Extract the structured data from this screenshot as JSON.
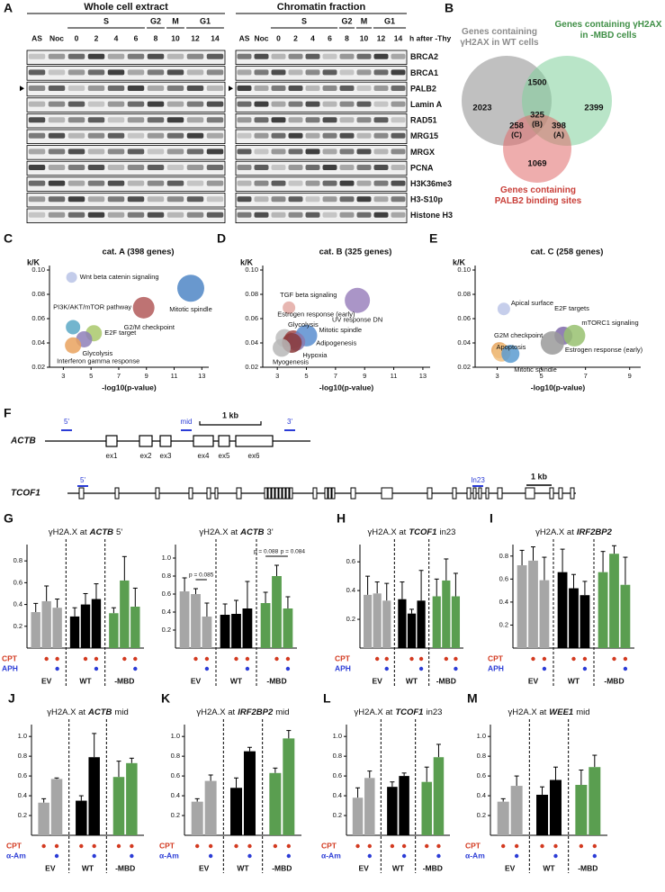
{
  "blot": {
    "panel": "A",
    "headers": [
      "Whole cell extract",
      "Chromatin fraction"
    ],
    "phases": [
      "S",
      "G2",
      "M",
      "G1"
    ],
    "lanes": [
      "AS",
      "Noc",
      "0",
      "2",
      "4",
      "6",
      "8",
      "10",
      "12",
      "14"
    ],
    "time_label": "h after -Thy",
    "proteins": [
      "BRCA2",
      "BRCA1",
      "PALB2",
      "Lamin A",
      "RAD51",
      "MRG15",
      "MRGX",
      "PCNA",
      "H3K36me3",
      "H3-S10p",
      "Histone H3"
    ]
  },
  "venn": {
    "panel": "B",
    "sets": [
      {
        "label": "Genes containing γH2AX in WT cells",
        "color": "#8c8c8c"
      },
      {
        "label": "Genes containing γH2AX in -MBD cells",
        "color": "#3f8f46"
      },
      {
        "label": "Genes containing PALB2 binding sites",
        "color": "#c9403a"
      }
    ],
    "regions": [
      {
        "count": 2023
      },
      {
        "count": 1500
      },
      {
        "count": 2399
      },
      {
        "count": 325,
        "tag": "(B)"
      },
      {
        "count": 258,
        "tag": "(C)"
      },
      {
        "count": 398,
        "tag": "(A)"
      },
      {
        "count": 1069
      }
    ]
  },
  "gene_map": {
    "panel": "F",
    "genes": [
      {
        "name": "ACTB",
        "exons": [
          "ex1",
          "ex2",
          "ex3",
          "ex4",
          "ex5",
          "ex6"
        ],
        "sites": [
          "5'",
          "mid",
          "3'"
        ],
        "scale": "1 kb"
      },
      {
        "name": "TCOF1",
        "sites": [
          "5'",
          "In23"
        ],
        "scale": "1 kb"
      }
    ]
  },
  "chart_data": [
    {
      "type": "bubble",
      "panel": "C",
      "title": "cat. A (398 genes)",
      "y_label": "k/K",
      "x_label": "-log10(p-value)",
      "xlim": [
        2,
        13.5
      ],
      "xticks": [
        3,
        5,
        7,
        9,
        11,
        13
      ],
      "ylim": [
        0.02,
        0.1
      ],
      "yticks": [
        0.02,
        0.04,
        0.06,
        0.08,
        {
          "value": 0.1,
          "label": "0.10"
        }
      ],
      "points": [
        {
          "name": "Wnt beta catenin signaling",
          "x": 3.6,
          "y": 0.094,
          "size": 6,
          "color": "#b9c3e6"
        },
        {
          "name": "PI3K/AKT/mTOR pathway",
          "x": 3.7,
          "y": 0.053,
          "size": 8,
          "color": "#5aa8c5"
        },
        {
          "name": "E2F target",
          "x": 5.2,
          "y": 0.048,
          "size": 9,
          "color": "#a9c86b"
        },
        {
          "name": "Glycolysis",
          "x": 4.5,
          "y": 0.043,
          "size": 9,
          "color": "#8e7fb8"
        },
        {
          "name": "Interferon gamma response",
          "x": 3.7,
          "y": 0.038,
          "size": 9,
          "color": "#e9a25e"
        },
        {
          "name": "G2/M checkpoint",
          "x": 8.8,
          "y": 0.069,
          "size": 12,
          "color": "#b35a5a"
        },
        {
          "name": "Mitotic spindle",
          "x": 12.2,
          "y": 0.085,
          "size": 15,
          "color": "#4f86c6"
        }
      ]
    },
    {
      "type": "bubble",
      "panel": "D",
      "title": "cat. B (325 genes)",
      "y_label": "k/K",
      "x_label": "-log10(p-value)",
      "xlim": [
        2,
        13.5
      ],
      "xticks": [
        3,
        5,
        7,
        9,
        11,
        13
      ],
      "ylim": [
        0.02,
        0.1
      ],
      "yticks": [
        0.02,
        0.04,
        0.06,
        0.08,
        {
          "value": 0.1,
          "label": "0.10"
        }
      ],
      "points": [
        {
          "name": "TGF beta signaling",
          "x": 3.8,
          "y": 0.069,
          "size": 7,
          "color": "#e3a9a3"
        },
        {
          "name": "UV response DN",
          "x": 8.5,
          "y": 0.075,
          "size": 14,
          "color": "#9b83bd"
        },
        {
          "name": "Estrogen response (early)",
          "x": 3.5,
          "y": 0.044,
          "size": 10,
          "color": "#bdbdbd"
        },
        {
          "name": "Glycolysis",
          "x": 4.1,
          "y": 0.043,
          "size": 10,
          "color": "#a04848"
        },
        {
          "name": "Mitotic spindle",
          "x": 5.0,
          "y": 0.046,
          "size": 12,
          "color": "#5b8ed0"
        },
        {
          "name": "Adipogenesis",
          "x": 4.3,
          "y": 0.041,
          "size": 10,
          "color": "#8a7ab0"
        },
        {
          "name": "Hypoxia",
          "x": 4.0,
          "y": 0.04,
          "size": 11,
          "color": "#8b3a3a"
        },
        {
          "name": "Myogenesis",
          "x": 3.3,
          "y": 0.036,
          "size": 10,
          "color": "#b7b7b7"
        }
      ]
    },
    {
      "type": "bubble",
      "panel": "E",
      "title": "cat. C (258 genes)",
      "y_label": "k/K",
      "x_label": "-log10(p-value)",
      "xlim": [
        2,
        9.5
      ],
      "xticks": [
        3,
        5,
        7,
        9
      ],
      "ylim": [
        0.02,
        0.1
      ],
      "yticks": [
        0.02,
        0.04,
        0.06,
        0.08,
        {
          "value": 0.1,
          "label": "0.10"
        }
      ],
      "points": [
        {
          "name": "Apical surface",
          "x": 3.3,
          "y": 0.068,
          "size": 7,
          "color": "#bcc6e8"
        },
        {
          "name": "E2F targets",
          "x": 6.0,
          "y": 0.046,
          "size": 10,
          "color": "#7f6aa8"
        },
        {
          "name": "mTORC1 signaling",
          "x": 6.5,
          "y": 0.046,
          "size": 12,
          "color": "#98c170"
        },
        {
          "name": "G2M checkpoint",
          "x": 3.1,
          "y": 0.034,
          "size": 9,
          "color": "#e8a35c"
        },
        {
          "name": "Apoptosis",
          "x": 3.2,
          "y": 0.032,
          "size": 10,
          "color": "#f0c080"
        },
        {
          "name": "Estrogen response (early)",
          "x": 5.5,
          "y": 0.04,
          "size": 13,
          "color": "#9a9a9a"
        },
        {
          "name": "Mitotic spindle",
          "x": 3.6,
          "y": 0.031,
          "size": 10,
          "color": "#5b9bd0"
        }
      ]
    },
    {
      "type": "bar",
      "panel": "G",
      "title_prefix": "γH2A.X at",
      "title_gene": "ACTB",
      "title_suffix": "5'",
      "ylim": [
        0,
        0.95
      ],
      "yticks": [
        0.2,
        0.4,
        0.6,
        0.8
      ],
      "series": [
        {
          "name": "EV",
          "color": "#a6a6a6",
          "values": [
            0.33,
            0.43,
            0.37
          ],
          "errors": [
            0.08,
            0.14,
            0.08
          ]
        },
        {
          "name": "WT",
          "color": "#000000",
          "values": [
            0.29,
            0.4,
            0.45
          ],
          "errors": [
            0.08,
            0.1,
            0.14
          ]
        },
        {
          "name": "-MBD",
          "color": "#5a9e50",
          "values": [
            0.32,
            0.62,
            0.38
          ],
          "errors": [
            0.05,
            0.22,
            0.17
          ]
        }
      ],
      "treatments": [
        {
          "name": "CPT",
          "color": "#d33a20",
          "marks": [
            false,
            true,
            true
          ]
        },
        {
          "name": "APH",
          "color": "#2b3cd6",
          "marks": [
            false,
            false,
            true
          ]
        }
      ]
    },
    {
      "type": "bar",
      "title_prefix": "γH2A.X at",
      "title_gene": "ACTB",
      "title_suffix": "3'",
      "ylim": [
        0,
        1.15
      ],
      "yticks": [
        0.2,
        0.4,
        0.6,
        0.8,
        {
          "value": 1,
          "label": "1.0"
        }
      ],
      "series": [
        {
          "name": "EV",
          "color": "#a6a6a6",
          "values": [
            0.63,
            0.6,
            0.35
          ],
          "errors": [
            0.15,
            0.06,
            0.15
          ]
        },
        {
          "name": "WT",
          "color": "#000000",
          "values": [
            0.37,
            0.38,
            0.44
          ],
          "errors": [
            0.12,
            0.15,
            0.3
          ]
        },
        {
          "name": "-MBD",
          "color": "#5a9e50",
          "values": [
            0.5,
            0.8,
            0.44
          ],
          "errors": [
            0.12,
            0.12,
            0.13
          ]
        }
      ],
      "treatments": [
        {
          "color": "#d33a20",
          "marks": [
            false,
            true,
            true
          ]
        },
        {
          "color": "#2b3cd6",
          "marks": [
            false,
            false,
            true
          ]
        }
      ],
      "annotations": [
        "p = 0.085",
        "p = 0.088",
        "p = 0.084"
      ]
    },
    {
      "type": "bar",
      "panel": "H",
      "title_prefix": "γH2A.X at",
      "title_gene": "TCOF1",
      "title_suffix": "in23",
      "ylim": [
        0,
        0.72
      ],
      "yticks": [
        0.2,
        0.4,
        0.6
      ],
      "series": [
        {
          "name": "EV",
          "color": "#a6a6a6",
          "values": [
            0.37,
            0.38,
            0.33
          ],
          "errors": [
            0.13,
            0.08,
            0.12
          ]
        },
        {
          "name": "WT",
          "color": "#000000",
          "values": [
            0.34,
            0.24,
            0.33
          ],
          "errors": [
            0.12,
            0.03,
            0.21
          ]
        },
        {
          "name": "-MBD",
          "color": "#5a9e50",
          "values": [
            0.36,
            0.47,
            0.36
          ],
          "errors": [
            0.12,
            0.15,
            0.16
          ]
        }
      ],
      "treatments": [
        {
          "name": "CPT",
          "color": "#d33a20",
          "marks": [
            false,
            true,
            true
          ]
        },
        {
          "name": "APH",
          "color": "#2b3cd6",
          "marks": [
            false,
            false,
            true
          ]
        }
      ]
    },
    {
      "type": "bar",
      "panel": "I",
      "title_prefix": "γH2A.X at",
      "title_gene": "IRF2BP2",
      "ylim": [
        0,
        0.9
      ],
      "yticks": [
        0.2,
        0.4,
        0.6,
        0.8
      ],
      "series": [
        {
          "name": "EV",
          "color": "#a6a6a6",
          "values": [
            0.72,
            0.76,
            0.59
          ],
          "errors": [
            0.13,
            0.12,
            0.2
          ]
        },
        {
          "name": "WT",
          "color": "#000000",
          "values": [
            0.66,
            0.52,
            0.46
          ],
          "errors": [
            0.2,
            0.12,
            0.12
          ]
        },
        {
          "name": "-MBD",
          "color": "#5a9e50",
          "values": [
            0.66,
            0.82,
            0.55
          ],
          "errors": [
            0.18,
            0.07,
            0.24
          ]
        }
      ],
      "treatments": [
        {
          "name": "CPT",
          "color": "#d33a20",
          "marks": [
            false,
            true,
            true
          ]
        },
        {
          "name": "APH",
          "color": "#2b3cd6",
          "marks": [
            false,
            false,
            true
          ]
        }
      ]
    },
    {
      "type": "bar",
      "panel": "J",
      "title_prefix": "γH2A.X at",
      "title_gene": "ACTB",
      "title_suffix": "mid",
      "ylim": [
        0,
        1.12
      ],
      "yticks": [
        0.2,
        0.4,
        0.6,
        0.8,
        {
          "value": 1,
          "label": "1.0"
        }
      ],
      "series": [
        {
          "name": "EV",
          "color": "#a6a6a6",
          "values": [
            0.33,
            0.57
          ],
          "errors": [
            0.04,
            0.01
          ]
        },
        {
          "name": "WT",
          "color": "#000000",
          "values": [
            0.35,
            0.79
          ],
          "errors": [
            0.05,
            0.24
          ]
        },
        {
          "name": "-MBD",
          "color": "#5a9e50",
          "values": [
            0.59,
            0.73
          ],
          "errors": [
            0.16,
            0.05
          ]
        }
      ],
      "treatments": [
        {
          "name": "CPT",
          "color": "#d33a20",
          "marks": [
            true,
            true
          ]
        },
        {
          "name": "α-Am",
          "color": "#2b3cd6",
          "marks": [
            false,
            true
          ]
        }
      ]
    },
    {
      "type": "bar",
      "panel": "K",
      "title_prefix": "γH2A.X at",
      "title_gene": "IRF2BP2",
      "title_suffix": "mid",
      "ylim": [
        0,
        1.12
      ],
      "yticks": [
        0.2,
        0.4,
        0.6,
        0.8,
        {
          "value": 1,
          "label": "1.0"
        }
      ],
      "series": [
        {
          "name": "EV",
          "color": "#a6a6a6",
          "values": [
            0.34,
            0.55
          ],
          "errors": [
            0.03,
            0.06
          ]
        },
        {
          "name": "WT",
          "color": "#000000",
          "values": [
            0.48,
            0.85
          ],
          "errors": [
            0.1,
            0.04
          ]
        },
        {
          "name": "-MBD",
          "color": "#5a9e50",
          "values": [
            0.63,
            0.98
          ],
          "errors": [
            0.05,
            0.08
          ]
        }
      ],
      "treatments": [
        {
          "name": "CPT",
          "color": "#d33a20",
          "marks": [
            true,
            true
          ]
        },
        {
          "name": "α-Am",
          "color": "#2b3cd6",
          "marks": [
            false,
            true
          ]
        }
      ]
    },
    {
      "type": "bar",
      "panel": "L",
      "title_prefix": "γH2A.X at",
      "title_gene": "TCOF1",
      "title_suffix": "in23",
      "ylim": [
        0,
        1.12
      ],
      "yticks": [
        0.2,
        0.4,
        0.6,
        0.8,
        {
          "value": 1,
          "label": "1.0"
        }
      ],
      "series": [
        {
          "name": "EV",
          "color": "#a6a6a6",
          "values": [
            0.38,
            0.58
          ],
          "errors": [
            0.1,
            0.07
          ]
        },
        {
          "name": "WT",
          "color": "#000000",
          "values": [
            0.49,
            0.6
          ],
          "errors": [
            0.05,
            0.03
          ]
        },
        {
          "name": "-MBD",
          "color": "#5a9e50",
          "values": [
            0.54,
            0.79
          ],
          "errors": [
            0.15,
            0.13
          ]
        }
      ],
      "treatments": [
        {
          "name": "CPT",
          "color": "#d33a20",
          "marks": [
            true,
            true
          ]
        },
        {
          "name": "α-Am",
          "color": "#2b3cd6",
          "marks": [
            false,
            true
          ]
        }
      ]
    },
    {
      "type": "bar",
      "panel": "M",
      "title_prefix": "γH2A.X at",
      "title_gene": "WEE1",
      "title_suffix": "mid",
      "ylim": [
        0,
        1.12
      ],
      "yticks": [
        0.2,
        0.4,
        0.6,
        0.8,
        {
          "value": 1,
          "label": "1.0"
        }
      ],
      "series": [
        {
          "name": "EV",
          "color": "#a6a6a6",
          "values": [
            0.34,
            0.5
          ],
          "errors": [
            0.03,
            0.1
          ]
        },
        {
          "name": "WT",
          "color": "#000000",
          "values": [
            0.41,
            0.56
          ],
          "errors": [
            0.08,
            0.13
          ]
        },
        {
          "name": "-MBD",
          "color": "#5a9e50",
          "values": [
            0.51,
            0.69
          ],
          "errors": [
            0.15,
            0.12
          ]
        }
      ],
      "treatments": [
        {
          "name": "CPT",
          "color": "#d33a20",
          "marks": [
            true,
            true
          ]
        },
        {
          "name": "α-Am",
          "color": "#2b3cd6",
          "marks": [
            false,
            true
          ]
        }
      ]
    }
  ]
}
